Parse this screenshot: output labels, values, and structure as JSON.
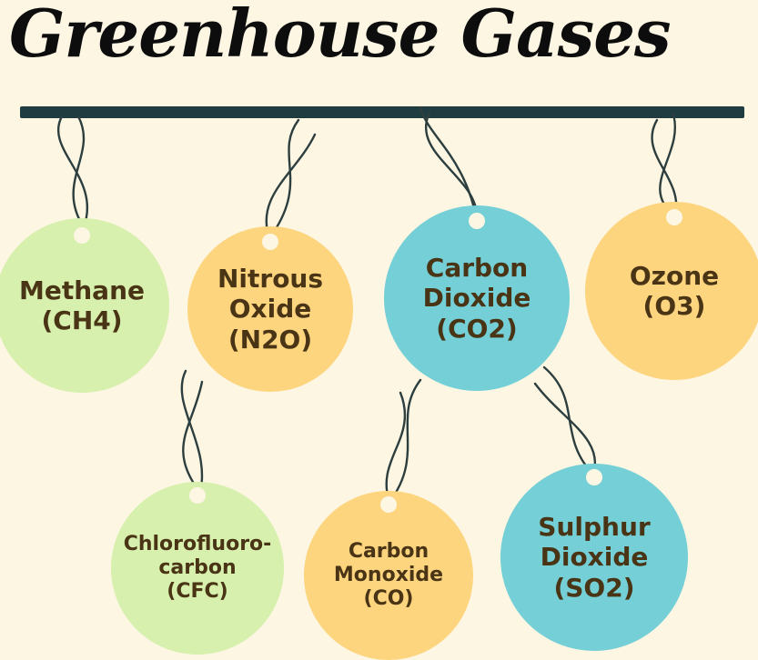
{
  "title": "Greenhouse Gases",
  "colors": {
    "green": "#d7f0ad",
    "yellow": "#fdd57e",
    "blue": "#74cfd6",
    "text": "#4a3416",
    "bar": "#1f3d40",
    "background": "#fcf6e3"
  },
  "gases": [
    {
      "lines": [
        "Methane",
        "(CH4)"
      ],
      "color": "green"
    },
    {
      "lines": [
        "Nitrous",
        "Oxide",
        "(N2O)"
      ],
      "color": "yellow"
    },
    {
      "lines": [
        "Carbon",
        "Dioxide",
        "(CO2)"
      ],
      "color": "blue"
    },
    {
      "lines": [
        "Ozone",
        "(O3)"
      ],
      "color": "yellow"
    },
    {
      "lines": [
        "Chlorofluoro-",
        "carbon",
        "(CFC)"
      ],
      "color": "green"
    },
    {
      "lines": [
        "Carbon",
        "Monoxide",
        "(CO)"
      ],
      "color": "yellow"
    },
    {
      "lines": [
        "Sulphur",
        "Dioxide",
        "(SO2)"
      ],
      "color": "blue"
    }
  ]
}
